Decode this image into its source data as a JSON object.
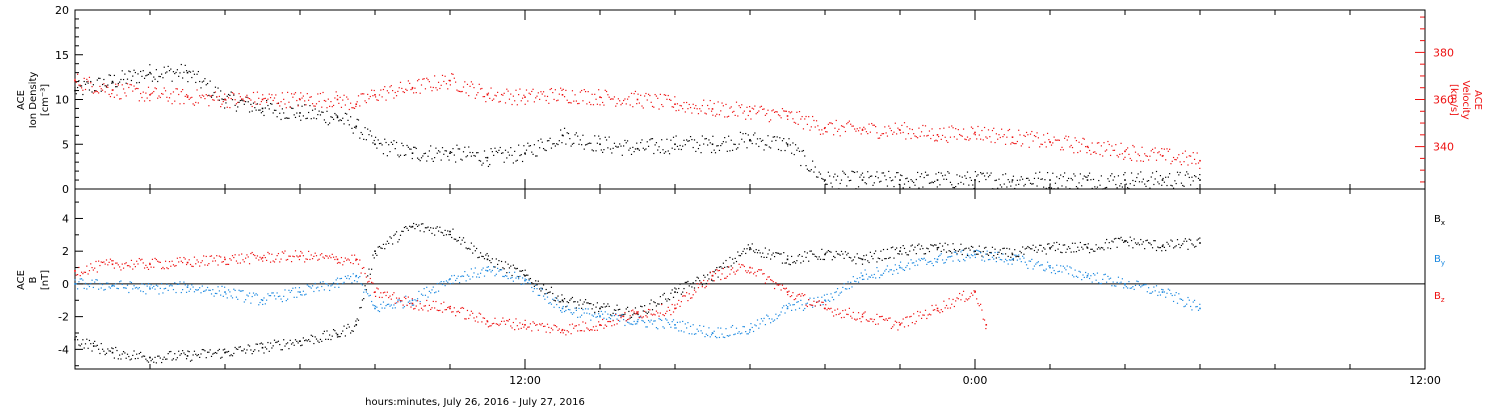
{
  "chart_data": {
    "type": "scatter",
    "xlabel": "hours:minutes, July 26, 2016 - July 27, 2016",
    "x_range_hours": [
      0,
      36
    ],
    "x_tick_labels": [
      {
        "hour": 12,
        "label": "12:00"
      },
      {
        "hour": 24,
        "label": "0:00"
      },
      {
        "hour": 36,
        "label": "12:00"
      }
    ],
    "top_panel": {
      "left_ylabel": [
        "ACE",
        "Ion Density",
        "[cm⁻³]"
      ],
      "right_ylabel": [
        "ACE",
        "Velocity",
        "[km/s]"
      ],
      "left_ylim": [
        0,
        20
      ],
      "left_ticks": [
        0,
        5,
        10,
        15,
        20
      ],
      "right_ylim": [
        322,
        398
      ],
      "right_ticks": [
        340,
        360,
        380
      ],
      "colors": {
        "density": "#000000",
        "velocity": "#ee1111"
      },
      "series": [
        {
          "name": "density",
          "axis": "left",
          "color": "#000000",
          "x": [
            0,
            1,
            2,
            3,
            4,
            5,
            6,
            7,
            7.5,
            8,
            9,
            10,
            11,
            12,
            13,
            14,
            15,
            16,
            17,
            18,
            19,
            20,
            21,
            22,
            23,
            24,
            25,
            26,
            27,
            28,
            29,
            30
          ],
          "y": [
            11,
            12,
            13,
            13,
            10,
            9,
            8.5,
            8,
            7,
            5,
            4,
            4,
            3.5,
            4,
            6,
            5,
            4.5,
            5,
            5,
            5.5,
            5,
            1,
            1,
            1,
            1,
            1,
            1,
            1,
            1,
            1,
            1,
            1
          ]
        },
        {
          "name": "velocity",
          "axis": "right",
          "color": "#ee1111",
          "x": [
            0,
            1,
            2,
            3,
            4,
            5,
            6,
            7,
            7.5,
            8,
            9,
            10,
            11,
            12,
            13,
            14,
            15,
            16,
            17,
            18,
            19,
            20,
            21,
            22,
            23,
            24,
            25,
            26,
            27,
            28,
            29,
            30
          ],
          "y": [
            368,
            364,
            362,
            361,
            360,
            360,
            360,
            360,
            358,
            362,
            365,
            368,
            362,
            361,
            362,
            361,
            360,
            358,
            356,
            355,
            353,
            348,
            347,
            347,
            345,
            346,
            344,
            342,
            340,
            338,
            336,
            334
          ]
        }
      ]
    },
    "bottom_panel": {
      "ylabel": [
        "ACE",
        "B",
        "[nT]"
      ],
      "ylim": [
        -5.2,
        5.8
      ],
      "ticks": [
        -4,
        -2,
        0,
        2,
        4
      ],
      "legend": [
        {
          "label": "B",
          "sub": "x",
          "color": "#000000"
        },
        {
          "label": "B",
          "sub": "y",
          "color": "#1a88e0"
        },
        {
          "label": "B",
          "sub": "z",
          "color": "#ee1111"
        }
      ],
      "series": [
        {
          "name": "Bx",
          "color": "#000000",
          "x": [
            0,
            0.5,
            1,
            2,
            3,
            4,
            5,
            6,
            7,
            7.5,
            8,
            9,
            10,
            11,
            12,
            13,
            14,
            15,
            16,
            17,
            18,
            19,
            20,
            21,
            22,
            23,
            24,
            25,
            26,
            27,
            28,
            29,
            30
          ],
          "y": [
            -3.4,
            -3.8,
            -4.2,
            -4.5,
            -4.4,
            -4.2,
            -3.9,
            -3.5,
            -3.1,
            -2.5,
            2,
            3.5,
            3.2,
            1.5,
            0.5,
            -1,
            -1.5,
            -1.8,
            -0.5,
            0.5,
            2.2,
            1.5,
            1.8,
            1.5,
            2.0,
            2.2,
            2.0,
            1.8,
            2.2,
            2.2,
            2.6,
            2.3,
            2.5
          ]
        },
        {
          "name": "By",
          "color": "#1a88e0",
          "x": [
            0,
            1,
            2,
            3,
            4,
            5,
            6,
            7,
            7.5,
            8,
            9,
            10,
            11,
            12,
            13,
            14,
            15,
            16,
            17,
            18,
            19,
            20,
            21,
            22,
            23,
            24,
            25,
            26,
            27,
            28,
            29,
            30
          ],
          "y": [
            0,
            -0.1,
            -0.3,
            -0.2,
            -0.5,
            -1,
            -0.5,
            0,
            0.5,
            -1.5,
            -1,
            0.3,
            0.8,
            0.2,
            -1.5,
            -2,
            -2.3,
            -2.5,
            -3,
            -2.8,
            -1.5,
            -1,
            0.5,
            1,
            1.5,
            1.8,
            1.5,
            1,
            0.5,
            0,
            -0.5,
            -1.5
          ]
        },
        {
          "name": "Bz",
          "color": "#ee1111",
          "x": [
            0,
            1,
            2,
            3,
            4,
            5,
            6,
            7,
            7.5,
            8,
            9,
            10,
            11,
            12,
            13,
            14,
            15,
            16,
            17,
            18,
            19,
            20,
            21,
            22,
            23,
            24,
            24.3
          ],
          "y": [
            0.8,
            1.2,
            1.2,
            1.3,
            1.5,
            1.6,
            1.7,
            1.5,
            1.5,
            -0.5,
            -1.2,
            -1.5,
            -2.3,
            -2.5,
            -2.8,
            -2.5,
            -1.8,
            -1.5,
            0.5,
            1,
            -0.5,
            -1.5,
            -2,
            -2.5,
            -1.5,
            -0.5,
            -2.5
          ]
        }
      ]
    }
  }
}
